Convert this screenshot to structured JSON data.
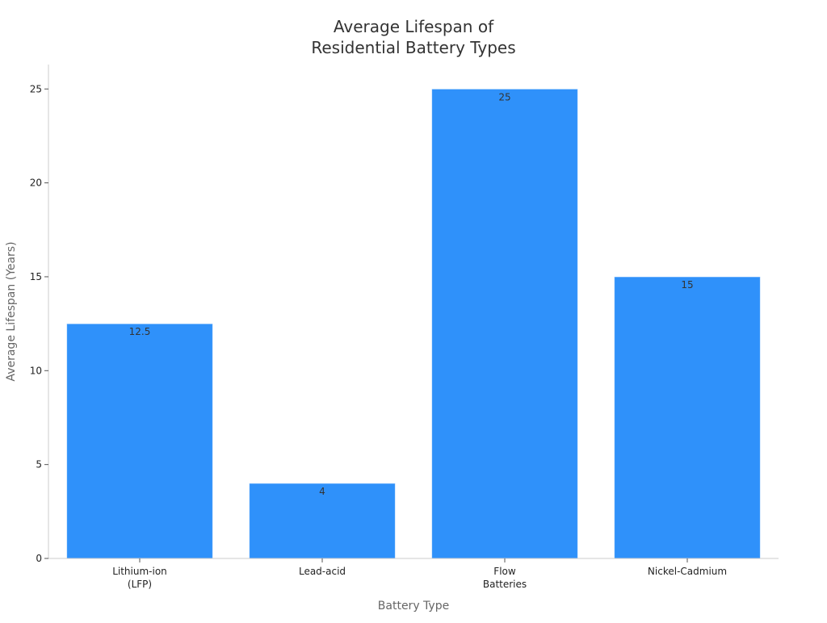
{
  "chart_data": {
    "type": "bar",
    "title": [
      "Average Lifespan of",
      "Residential Battery Types"
    ],
    "xlabel": "Battery Type",
    "ylabel": "Average Lifespan (Years)",
    "categories": [
      [
        "Lithium-ion",
        "(LFP)"
      ],
      [
        "Lead-acid"
      ],
      [
        "Flow",
        "Batteries"
      ],
      [
        "Nickel-Cadmium"
      ]
    ],
    "values": [
      12.5,
      4,
      25,
      15
    ],
    "data_labels": [
      "12.5",
      "4",
      "25",
      "15"
    ],
    "ylim": [
      0,
      26.3
    ],
    "yticks": [
      0,
      5,
      10,
      15,
      20,
      25
    ],
    "grid": false,
    "legend": "none",
    "bar_color": "#2f91fa"
  }
}
